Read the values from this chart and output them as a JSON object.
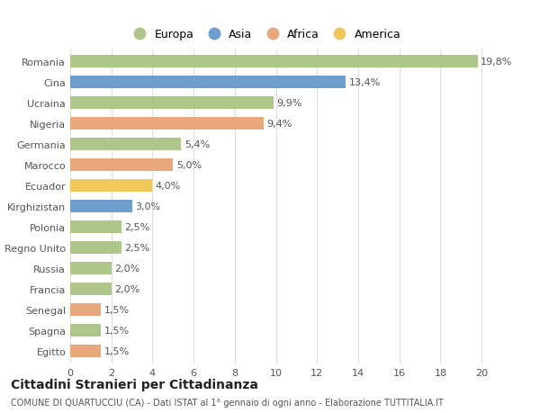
{
  "categories": [
    "Romania",
    "Cina",
    "Ucraina",
    "Nigeria",
    "Germania",
    "Marocco",
    "Ecuador",
    "Kirghizistan",
    "Polonia",
    "Regno Unito",
    "Russia",
    "Francia",
    "Senegal",
    "Spagna",
    "Egitto"
  ],
  "values": [
    19.8,
    13.4,
    9.9,
    9.4,
    5.4,
    5.0,
    4.0,
    3.0,
    2.5,
    2.5,
    2.0,
    2.0,
    1.5,
    1.5,
    1.5
  ],
  "labels": [
    "19,8%",
    "13,4%",
    "9,9%",
    "9,4%",
    "5,4%",
    "5,0%",
    "4,0%",
    "3,0%",
    "2,5%",
    "2,5%",
    "2,0%",
    "2,0%",
    "1,5%",
    "1,5%",
    "1,5%"
  ],
  "colors": [
    "#aec689",
    "#6d9ecd",
    "#aec689",
    "#e8a87c",
    "#aec689",
    "#e8a87c",
    "#f0c85a",
    "#6d9ecd",
    "#aec689",
    "#aec689",
    "#aec689",
    "#aec689",
    "#e8a87c",
    "#aec689",
    "#e8a87c"
  ],
  "legend_labels": [
    "Europa",
    "Asia",
    "Africa",
    "America"
  ],
  "legend_colors": [
    "#aec689",
    "#6d9ecd",
    "#e8a87c",
    "#f0c85a"
  ],
  "xlim": [
    0,
    21
  ],
  "xticks": [
    0,
    2,
    4,
    6,
    8,
    10,
    12,
    14,
    16,
    18,
    20
  ],
  "title": "Cittadini Stranieri per Cittadinanza",
  "subtitle": "COMUNE DI QUARTUCCIU (CA) - Dati ISTAT al 1° gennaio di ogni anno - Elaborazione TUTTITALIA.IT",
  "background_color": "#ffffff",
  "grid_color": "#dddddd",
  "bar_height": 0.62,
  "label_fontsize": 8,
  "tick_fontsize": 8,
  "title_fontsize": 10,
  "subtitle_fontsize": 7
}
